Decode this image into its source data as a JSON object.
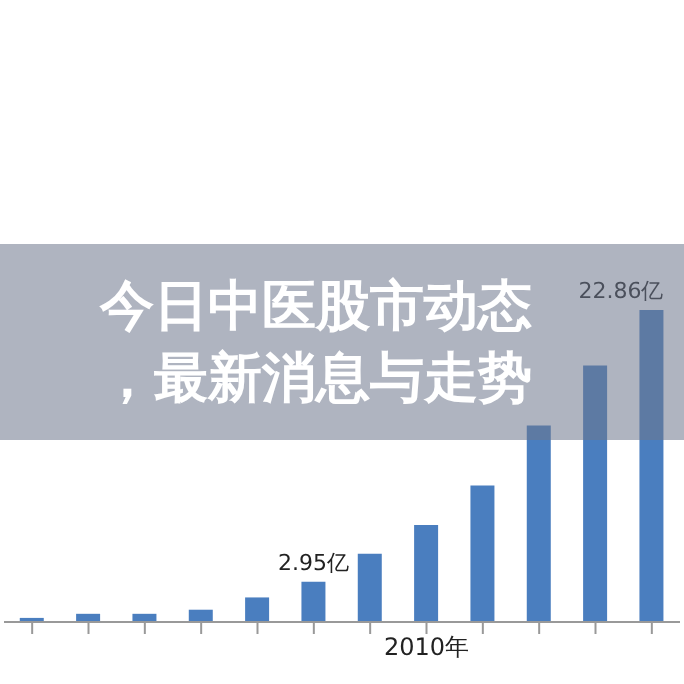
{
  "chart_data": {
    "type": "bar",
    "title": "今日中医股市动态，最新消息与走势",
    "categories": [
      null,
      null,
      null,
      null,
      null,
      null,
      null,
      "2010年",
      null,
      null,
      null,
      null
    ],
    "values": [
      0.3,
      0.6,
      0.6,
      0.9,
      1.8,
      2.95,
      5.0,
      7.1,
      10.0,
      14.4,
      18.8,
      22.86
    ],
    "value_labels": [
      null,
      null,
      null,
      null,
      null,
      "2.95亿",
      null,
      null,
      null,
      null,
      null,
      "22.86亿"
    ],
    "color": "#4a7ebf",
    "grid": false,
    "legend": false
  }
}
